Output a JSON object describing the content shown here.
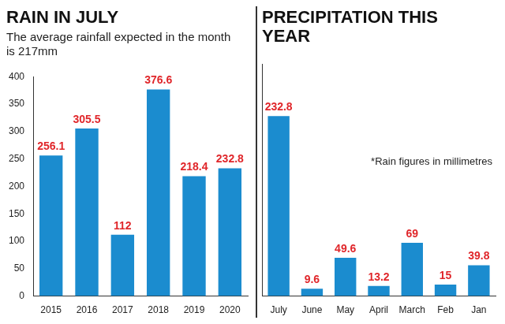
{
  "chart_data": [
    {
      "type": "bar",
      "title": "RAIN IN JULY",
      "subtitle": "The average rainfall expected in the month is 217mm",
      "categories": [
        "2015",
        "2016",
        "2017",
        "2018",
        "2019",
        "2020"
      ],
      "values": [
        256.1,
        305.5,
        112,
        376.6,
        218.4,
        232.8
      ],
      "color": "#1b8ccf",
      "ylim": [
        0,
        400
      ],
      "yticks": [
        0,
        50,
        100,
        150,
        200,
        250,
        300,
        350,
        400
      ],
      "grid": false,
      "data_labels": true
    },
    {
      "type": "bar",
      "title": "PRECIPITATION THIS YEAR",
      "annotations": [
        "*Rain figures in millimetres"
      ],
      "categories": [
        "July",
        "June",
        "May",
        "April",
        "March",
        "Feb",
        "Jan"
      ],
      "values": [
        232.8,
        9.6,
        49.6,
        13.2,
        69,
        15,
        39.8
      ],
      "color": "#1b8ccf",
      "ylim": [
        0,
        300
      ],
      "grid": false,
      "data_labels": true,
      "tick_labels": "x"
    }
  ]
}
